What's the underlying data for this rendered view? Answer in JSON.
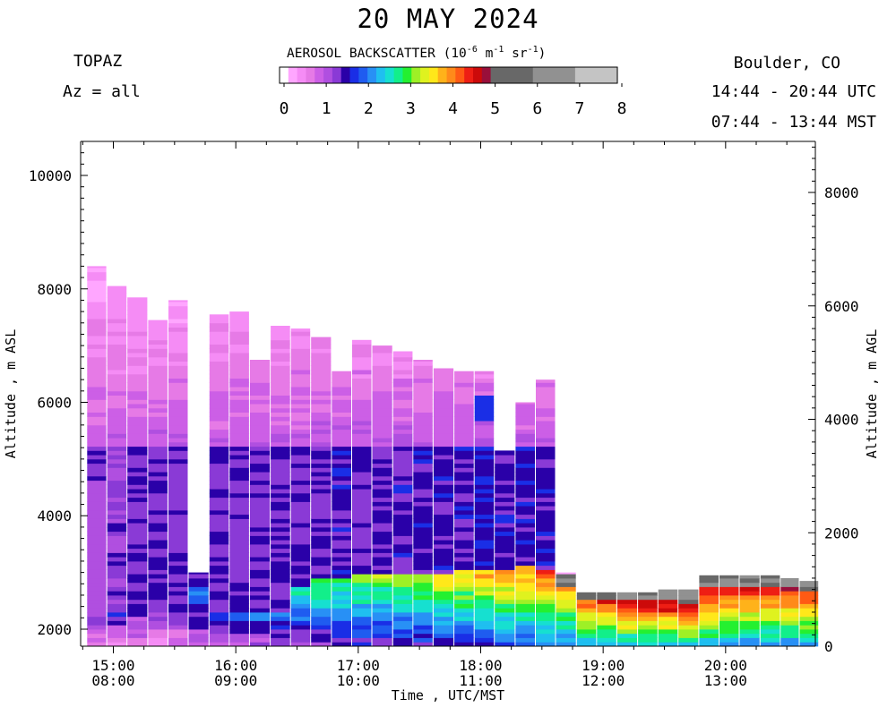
{
  "header": {
    "title": "20 MAY 2024",
    "instrument": "TOPAZ",
    "azimuth": "Az = all",
    "location": "Boulder, CO",
    "utc_range": "14:44 - 20:44 UTC",
    "mst_range": "07:44 - 13:44 MST"
  },
  "colorbar": {
    "title_text": "AEROSOL BACKSCATTER (10",
    "exp1": "-6",
    "unit_m": " m",
    "exp2": "-1",
    "unit_sr": " sr",
    "exp3": "-1",
    "close": ")",
    "ticks": [
      "0",
      "1",
      "2",
      "3",
      "4",
      "5",
      "6",
      "7",
      "8"
    ],
    "colors": [
      "#ffffff",
      "#ffa6ff",
      "#f58cf5",
      "#e67ae6",
      "#cc5fe6",
      "#b04fe0",
      "#8a3ad6",
      "#2a00a8",
      "#1a2ee6",
      "#1f5cf0",
      "#2890f5",
      "#1fbff0",
      "#16e0d0",
      "#12ef8a",
      "#24f030",
      "#9ef026",
      "#dff21f",
      "#ffe81a",
      "#ffb21a",
      "#ff8a1a",
      "#ff5a14",
      "#ee1e14",
      "#cc0a0a",
      "#990f3a",
      "#686868",
      "#919191",
      "#c4c4c4"
    ]
  },
  "chart_data": {
    "type": "heatmap",
    "title": "20 MAY 2024",
    "xlabel": "Time , UTC/MST",
    "ylabel_left": "Altitude , m ASL",
    "ylabel_right": "Altitude , m AGL",
    "x_ticks_utc": [
      "15:00",
      "16:00",
      "17:00",
      "18:00",
      "19:00",
      "20:00"
    ],
    "x_ticks_mst": [
      "08:00",
      "09:00",
      "10:00",
      "11:00",
      "12:00",
      "13:00"
    ],
    "xlim_utc_hours": [
      14.733,
      20.733
    ],
    "ylim_asl": [
      1700,
      10600
    ],
    "y_ticks_asl": [
      2000,
      4000,
      6000,
      8000,
      10000
    ],
    "y_ticks_agl": [
      0,
      2000,
      4000,
      6000,
      8000
    ],
    "surface_altitude_asl": 1700,
    "color_scale": [
      0,
      8
    ],
    "color_scale_units": "10^-6 m^-1 sr^-1",
    "columns": [
      {
        "t": 14.87,
        "top": 8400,
        "pbl": 2200,
        "aloft": 1.6,
        "mid": 1.4,
        "sfc": 1.2
      },
      {
        "t": 15.03,
        "top": 8050,
        "pbl": 2250,
        "aloft": 1.5,
        "mid": 1.3,
        "sfc": 1.2
      },
      {
        "t": 15.2,
        "top": 7850,
        "pbl": 2250,
        "aloft": 1.6,
        "mid": 1.4,
        "sfc": 1.0
      },
      {
        "t": 15.37,
        "top": 7450,
        "pbl": 2300,
        "aloft": 1.5,
        "mid": 1.4,
        "sfc": 1.0
      },
      {
        "t": 15.53,
        "top": 7800,
        "pbl": 2300,
        "aloft": 1.5,
        "mid": 1.4,
        "sfc": 1.0
      },
      {
        "t": 15.7,
        "top": 3000,
        "pbl": 2700,
        "aloft": 1.6,
        "mid": 1.5,
        "sfc": 1.6
      },
      {
        "t": 15.87,
        "top": 7550,
        "pbl": 2300,
        "aloft": 1.5,
        "mid": 1.4,
        "sfc": 1.6
      },
      {
        "t": 16.03,
        "top": 7600,
        "pbl": 2300,
        "aloft": 1.5,
        "mid": 1.4,
        "sfc": 1.6
      },
      {
        "t": 16.2,
        "top": 6750,
        "pbl": 2300,
        "aloft": 1.5,
        "mid": 1.4,
        "sfc": 1.8
      },
      {
        "t": 16.37,
        "top": 7350,
        "pbl": 2300,
        "aloft": 1.5,
        "mid": 1.4,
        "sfc": 1.8
      },
      {
        "t": 16.53,
        "top": 7300,
        "pbl": 2750,
        "aloft": 1.5,
        "mid": 1.4,
        "sfc": 2.2
      },
      {
        "t": 16.7,
        "top": 7150,
        "pbl": 2850,
        "aloft": 1.5,
        "mid": 1.4,
        "sfc": 2.4
      },
      {
        "t": 16.87,
        "top": 6550,
        "pbl": 2900,
        "aloft": 1.5,
        "mid": 1.5,
        "sfc": 2.5
      },
      {
        "t": 17.03,
        "top": 7100,
        "pbl": 2950,
        "aloft": 1.5,
        "mid": 1.4,
        "sfc": 2.6
      },
      {
        "t": 17.2,
        "top": 7000,
        "pbl": 2950,
        "aloft": 1.5,
        "mid": 1.4,
        "sfc": 2.6
      },
      {
        "t": 17.37,
        "top": 6900,
        "pbl": 2950,
        "aloft": 1.5,
        "mid": 1.5,
        "sfc": 2.8
      },
      {
        "t": 17.53,
        "top": 6750,
        "pbl": 2950,
        "aloft": 1.5,
        "mid": 1.5,
        "sfc": 2.8
      },
      {
        "t": 17.7,
        "top": 6600,
        "pbl": 2950,
        "aloft": 1.5,
        "mid": 1.5,
        "sfc": 3.0
      },
      {
        "t": 17.87,
        "top": 6550,
        "pbl": 3000,
        "aloft": 1.5,
        "mid": 1.5,
        "sfc": 3.0
      },
      {
        "t": 18.03,
        "top": 6550,
        "pbl": 3000,
        "aloft": 1.5,
        "mid": 1.6,
        "sfc": 3.2
      },
      {
        "t": 18.2,
        "top": 5150,
        "pbl": 3050,
        "aloft": 1.5,
        "mid": 1.5,
        "sfc": 3.4
      },
      {
        "t": 18.37,
        "top": 6000,
        "pbl": 3100,
        "aloft": 1.5,
        "mid": 1.5,
        "sfc": 3.4
      },
      {
        "t": 18.53,
        "top": 6400,
        "pbl": 3000,
        "aloft": 1.5,
        "mid": 1.5,
        "sfc": 3.6
      },
      {
        "t": 18.7,
        "top": 3000,
        "pbl": 2950,
        "aloft": 0,
        "mid": 0,
        "sfc": 3.6
      },
      {
        "t": 18.87,
        "top": 2650,
        "pbl": 2650,
        "aloft": 0,
        "mid": 0,
        "sfc": 4.0
      },
      {
        "t": 19.03,
        "top": 2650,
        "pbl": 2650,
        "aloft": 0,
        "mid": 0,
        "sfc": 4.2
      },
      {
        "t": 19.2,
        "top": 2650,
        "pbl": 2650,
        "aloft": 0,
        "mid": 0,
        "sfc": 4.4
      },
      {
        "t": 19.37,
        "top": 2650,
        "pbl": 2650,
        "aloft": 0,
        "mid": 0,
        "sfc": 4.5
      },
      {
        "t": 19.53,
        "top": 2700,
        "pbl": 2700,
        "aloft": 0,
        "mid": 0,
        "sfc": 4.6
      },
      {
        "t": 19.7,
        "top": 2700,
        "pbl": 2700,
        "aloft": 0,
        "mid": 0,
        "sfc": 4.6
      },
      {
        "t": 19.87,
        "top": 2950,
        "pbl": 2950,
        "aloft": 0,
        "mid": 0,
        "sfc": 4.4
      },
      {
        "t": 20.03,
        "top": 2950,
        "pbl": 2950,
        "aloft": 0,
        "mid": 0,
        "sfc": 4.3
      },
      {
        "t": 20.2,
        "top": 2950,
        "pbl": 2950,
        "aloft": 0,
        "mid": 0,
        "sfc": 4.2
      },
      {
        "t": 20.37,
        "top": 2950,
        "pbl": 2950,
        "aloft": 0,
        "mid": 0,
        "sfc": 4.2
      },
      {
        "t": 20.53,
        "top": 2900,
        "pbl": 2900,
        "aloft": 0,
        "mid": 0,
        "sfc": 4.2
      },
      {
        "t": 20.68,
        "top": 2850,
        "pbl": 2850,
        "aloft": 0,
        "mid": 0,
        "sfc": 4.2
      }
    ]
  }
}
